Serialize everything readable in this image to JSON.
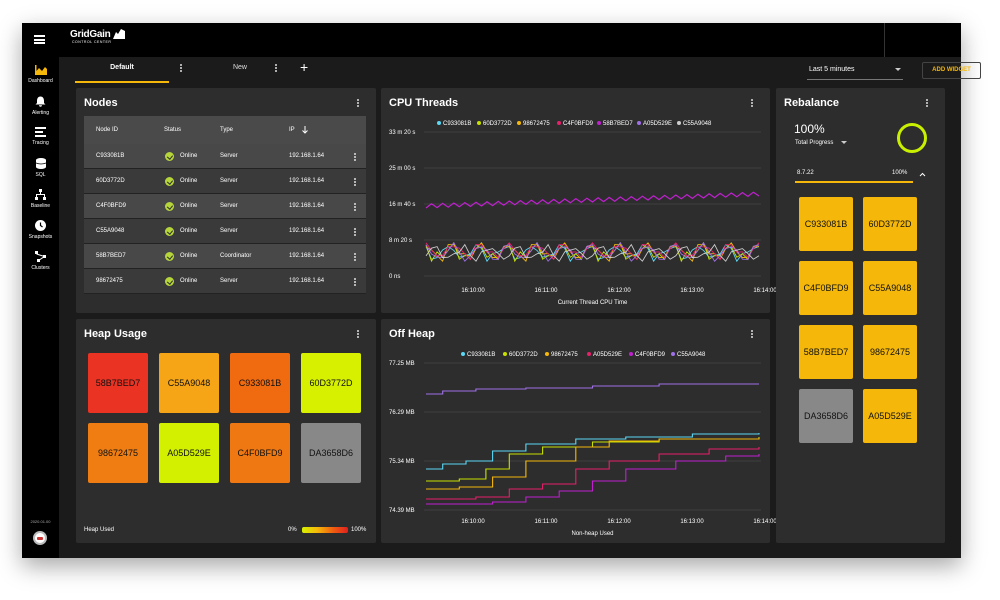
{
  "app": {
    "logo_main": "GridGain",
    "logo_sub": "CONTROL CENTER",
    "version": "2020.01.00"
  },
  "sidebar": {
    "items": [
      {
        "label": "Dashboard",
        "icon": "dashboard-icon",
        "active": true
      },
      {
        "label": "Alerting",
        "icon": "bell-icon"
      },
      {
        "label": "Tracing",
        "icon": "tracing-icon"
      },
      {
        "label": "SQL",
        "icon": "database-icon"
      },
      {
        "label": "Baseline",
        "icon": "baseline-icon"
      },
      {
        "label": "Snapshots",
        "icon": "clock-icon"
      },
      {
        "label": "Clusters",
        "icon": "clusters-icon"
      }
    ]
  },
  "tabs": {
    "default_label": "Default",
    "new_label": "New"
  },
  "toolbar": {
    "time_range": "Last 5 minutes",
    "add_widget": "ADD WIDGET"
  },
  "nodes": {
    "title": "Nodes",
    "columns": [
      "Node ID",
      "Status",
      "Type",
      "IP"
    ],
    "rows": [
      {
        "id": "C933081B",
        "status": "Online",
        "type": "Server",
        "ip": "192.168.1.64"
      },
      {
        "id": "60D3772D",
        "status": "Online",
        "type": "Server",
        "ip": "192.168.1.64"
      },
      {
        "id": "C4F0BFD9",
        "status": "Online",
        "type": "Server",
        "ip": "192.168.1.64"
      },
      {
        "id": "C55A9048",
        "status": "Online",
        "type": "Server",
        "ip": "192.168.1.64"
      },
      {
        "id": "58B7BED7",
        "status": "Online",
        "type": "Coordinator",
        "ip": "192.168.1.64"
      },
      {
        "id": "98672475",
        "status": "Online",
        "type": "Server",
        "ip": "192.168.1.64"
      }
    ]
  },
  "cpu": {
    "title": "CPU Threads",
    "legend": [
      {
        "name": "C933081B",
        "color": "#5ad8f5"
      },
      {
        "name": "60D3772D",
        "color": "#c8e000"
      },
      {
        "name": "98672475",
        "color": "#f5b80a"
      },
      {
        "name": "C4F0BFD9",
        "color": "#e8206a"
      },
      {
        "name": "58B7BED7",
        "color": "#c020d0"
      },
      {
        "name": "A05D529E",
        "color": "#a070e8"
      },
      {
        "name": "C55A9048",
        "color": "#cccccc"
      }
    ],
    "y_ticks": [
      "33 m 20 s",
      "25 m 00 s",
      "16 m 40 s",
      "8 m 20 s",
      "0 ns"
    ],
    "x_ticks": [
      "16:10:00",
      "16:11:00",
      "16:12:00",
      "16:13:00",
      "16:14:00"
    ],
    "x_label": "Current Thread CPU Time"
  },
  "heap": {
    "title": "Heap Usage",
    "tiles": [
      {
        "id": "58B7BED7",
        "color": "#ea3323"
      },
      {
        "id": "C55A9048",
        "color": "#f5a516"
      },
      {
        "id": "C933081B",
        "color": "#f06a10"
      },
      {
        "id": "60D3772D",
        "color": "#d7f000"
      },
      {
        "id": "98672475",
        "color": "#f07d12"
      },
      {
        "id": "A05D529E",
        "color": "#d2f000"
      },
      {
        "id": "C4F0BFD9",
        "color": "#f07812"
      },
      {
        "id": "DA3658D6",
        "color": "#888888"
      }
    ],
    "footer_label": "Heap Used",
    "scale_min": "0%",
    "scale_max": "100%"
  },
  "offheap": {
    "title": "Off Heap",
    "legend": [
      {
        "name": "C933081B",
        "color": "#5ad8f5"
      },
      {
        "name": "60D3772D",
        "color": "#c8e000"
      },
      {
        "name": "98672475",
        "color": "#f5b80a"
      },
      {
        "name": "A05D529E",
        "color": "#e8206a"
      },
      {
        "name": "C4F0BFD9",
        "color": "#c020d0"
      },
      {
        "name": "C55A9048",
        "color": "#a070e8"
      }
    ],
    "y_ticks": [
      "77.25 MB",
      "76.29 MB",
      "75.34 MB",
      "74.39 MB"
    ],
    "x_ticks": [
      "16:10:00",
      "16:11:00",
      "16:12:00",
      "16:13:00",
      "16:14:00"
    ],
    "x_label": "Non-heap Used"
  },
  "rebalance": {
    "title": "Rebalance",
    "progress_value": "100%",
    "progress_label": "Total Progress",
    "version": "8.7.22",
    "version_progress": "100%",
    "tiles": [
      {
        "id": "C933081B",
        "color": "#f5b80a"
      },
      {
        "id": "60D3772D",
        "color": "#f5b80a"
      },
      {
        "id": "C4F0BFD9",
        "color": "#f5b80a"
      },
      {
        "id": "C55A9048",
        "color": "#f5b80a"
      },
      {
        "id": "58B7BED7",
        "color": "#f5b80a"
      },
      {
        "id": "98672475",
        "color": "#f5b80a"
      },
      {
        "id": "DA3658D6",
        "color": "#888888"
      },
      {
        "id": "A05D529E",
        "color": "#f5b80a"
      }
    ]
  }
}
